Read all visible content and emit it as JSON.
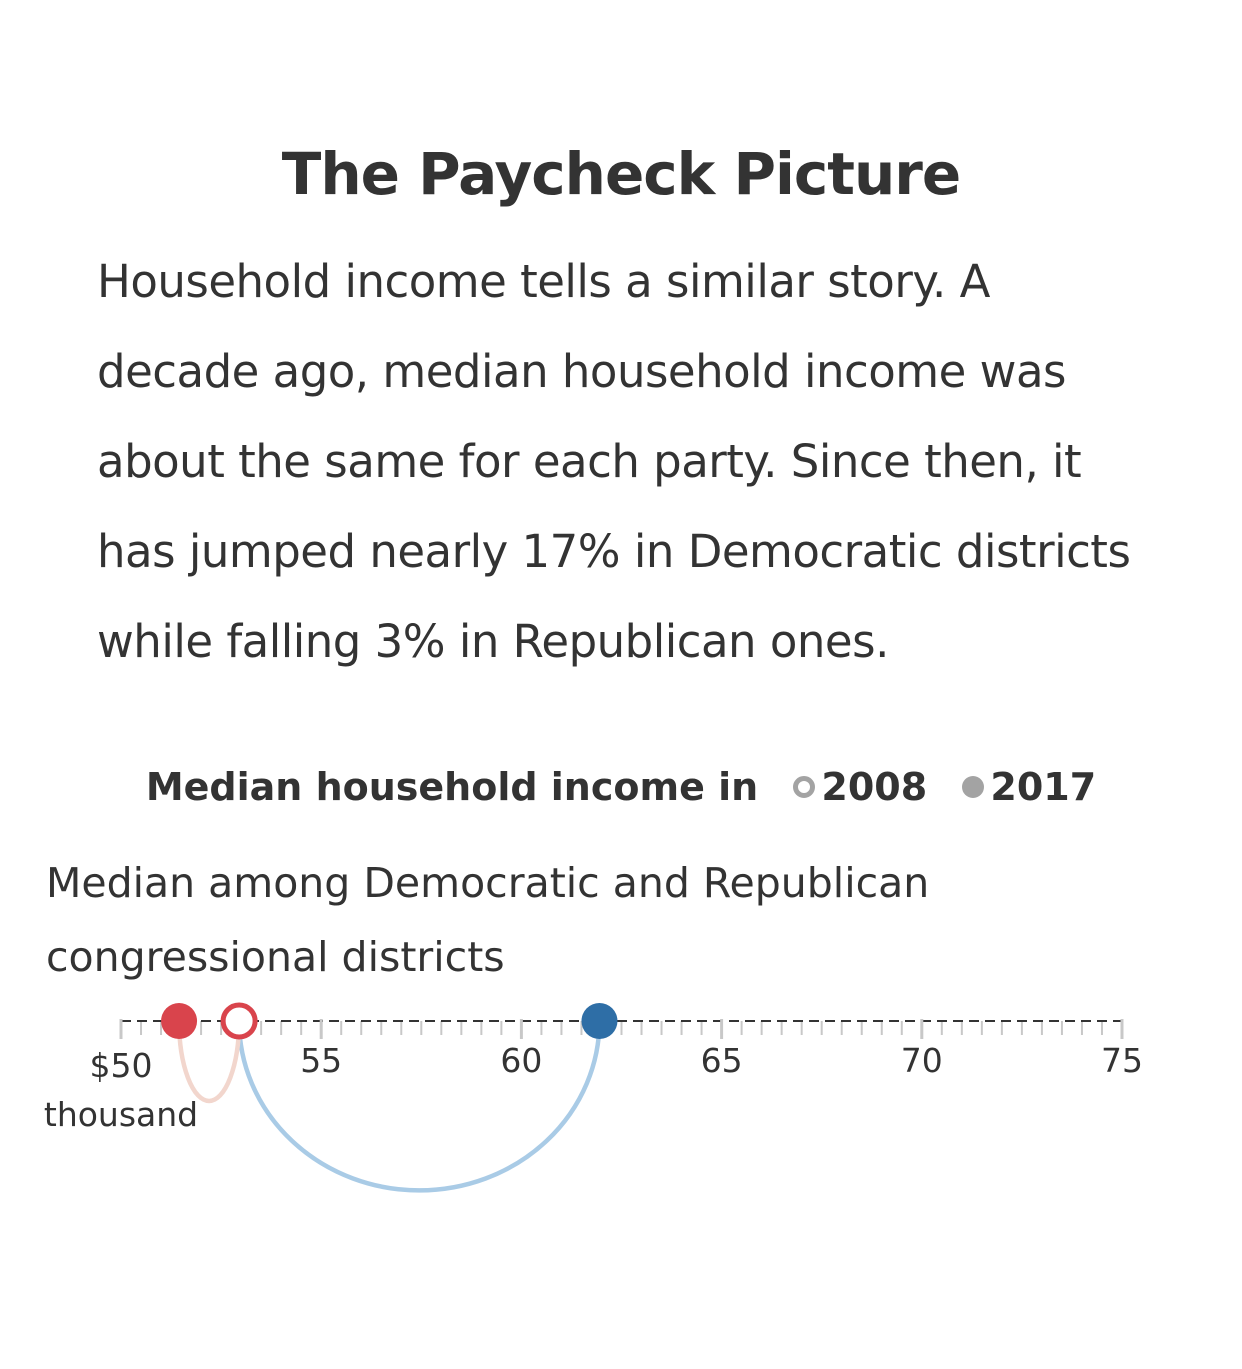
{
  "header": {
    "title": "The Paycheck Picture",
    "body": "Household income tells a similar story. A decade ago, median household income was about the same for each party. Since then, it has jumped nearly 17% in Democratic districts while falling 3% in Republican ones."
  },
  "legend": {
    "prefix": "Median household income in",
    "items": [
      {
        "label": "2008",
        "style": "open"
      },
      {
        "label": "2017",
        "style": "filled"
      }
    ]
  },
  "chart_data": {
    "type": "dot-arc",
    "title": "Median household income in 2008 2017",
    "subtitle": "Median among Democratic and Republican congressional districts",
    "xlim": [
      50,
      75
    ],
    "ticks": [
      {
        "value": 50,
        "label": "$50",
        "sublabel": "thousand"
      },
      {
        "value": 55,
        "label": "55"
      },
      {
        "value": 60,
        "label": "60"
      },
      {
        "value": 65,
        "label": "65"
      },
      {
        "value": 70,
        "label": "70"
      },
      {
        "value": 75,
        "label": "75"
      }
    ],
    "minor_tick_step": 0.5,
    "series": [
      {
        "name": "Democratic",
        "color": "#2e6ea6",
        "arc_color": "#a9cbe6",
        "v2008": 52.95,
        "v2017": 61.95
      },
      {
        "name": "Republican",
        "color": "#d9444c",
        "arc_color": "#f2d6cd",
        "v2008": 52.95,
        "v2017": 51.45
      }
    ],
    "colors": {
      "axis": "#333333",
      "minor_tick": "#c8c8c8",
      "legend": "#a3a3a3"
    }
  }
}
